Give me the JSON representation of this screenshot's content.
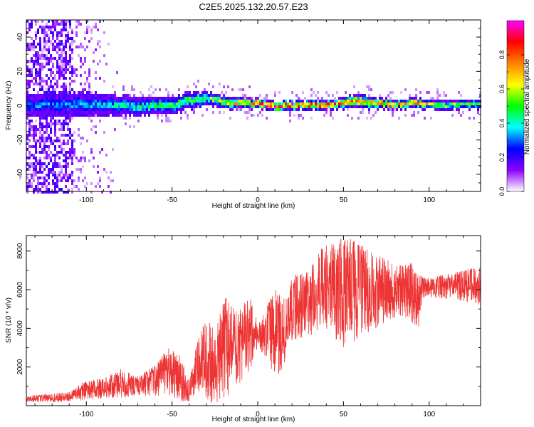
{
  "title": "C2E5.2025.132.20.57.E23",
  "colors": {
    "background": "#ffffff",
    "axis": "#000000",
    "snr_line": "#ee3333",
    "spectrogram_low": "#8b00ff",
    "spectrogram_high": "#ff0000"
  },
  "chart_data": [
    {
      "type": "heatmap",
      "title": "",
      "xlabel": "Height of straight line (km)",
      "ylabel": "Frequency (Hz)",
      "xlim": [
        -135,
        130
      ],
      "ylim": [
        -50,
        50
      ],
      "xticks": [
        -100,
        -50,
        0,
        50,
        100
      ],
      "yticks": [
        -40,
        -20,
        0,
        20,
        40
      ],
      "xtick_labels": [
        "-100",
        "-50",
        "0",
        "50",
        "100"
      ],
      "ytick_labels": [
        "-40",
        "-20",
        "0",
        "20",
        "40"
      ],
      "colorbar": {
        "label": "Normalized spectral amplitude",
        "range": [
          0.0,
          1.0
        ],
        "ticks": [
          0.0,
          0.2,
          0.4,
          0.6,
          0.8
        ],
        "tick_labels": [
          "0.0",
          "0.2",
          "0.4",
          "0.6",
          "0.8"
        ],
        "colormap": [
          "#ffffff",
          "#8b00ff",
          "#0000ff",
          "#00ffff",
          "#00ff00",
          "#ffff00",
          "#ff8000",
          "#ff0000",
          "#ff00ff"
        ]
      },
      "band": {
        "center_frequency": [
          [
            -110,
            0.5
          ],
          [
            -100,
            1.0
          ],
          [
            -90,
            0.8
          ],
          [
            -80,
            0.0
          ],
          [
            -70,
            -0.5
          ],
          [
            -60,
            0.5
          ],
          [
            -50,
            0.0
          ],
          [
            -40,
            3.0
          ],
          [
            -30,
            4.5
          ],
          [
            -20,
            2.0
          ],
          [
            -10,
            1.5
          ],
          [
            0,
            1.0
          ],
          [
            10,
            0.0
          ],
          [
            20,
            0.0
          ],
          [
            30,
            0.5
          ],
          [
            40,
            0.0
          ],
          [
            50,
            1.5
          ],
          [
            60,
            2.5
          ],
          [
            70,
            1.5
          ],
          [
            80,
            0.5
          ],
          [
            90,
            1.5
          ],
          [
            100,
            1.0
          ],
          [
            110,
            0.5
          ],
          [
            120,
            0.8
          ],
          [
            130,
            0.5
          ]
        ],
        "half_width": [
          [
            -110,
            7
          ],
          [
            -100,
            7
          ],
          [
            -80,
            6
          ],
          [
            -60,
            5
          ],
          [
            -40,
            5
          ],
          [
            -30,
            4
          ],
          [
            0,
            3
          ],
          [
            40,
            3
          ],
          [
            60,
            4
          ],
          [
            80,
            3
          ],
          [
            100,
            3
          ],
          [
            130,
            3
          ]
        ],
        "peak_amplitude": [
          [
            -110,
            0.3
          ],
          [
            -90,
            0.35
          ],
          [
            -60,
            0.45
          ],
          [
            -40,
            0.5
          ],
          [
            -20,
            0.55
          ],
          [
            0,
            0.85
          ],
          [
            20,
            0.88
          ],
          [
            40,
            0.8
          ],
          [
            60,
            0.75
          ],
          [
            80,
            0.7
          ],
          [
            95,
            0.75
          ],
          [
            100,
            0.55
          ],
          [
            130,
            0.5
          ]
        ],
        "noise_region": [
          -135,
          -108
        ]
      }
    },
    {
      "type": "line",
      "title": "",
      "xlabel": "Height of straight line (km)",
      "ylabel": "SNR (10 * v/v)",
      "xlim": [
        -135,
        130
      ],
      "ylim": [
        0,
        8800
      ],
      "xticks": [
        -100,
        -50,
        0,
        50,
        100
      ],
      "yticks": [
        2000,
        4000,
        6000,
        8000
      ],
      "xtick_labels": [
        "-100",
        "-50",
        "0",
        "50",
        "100"
      ],
      "ytick_labels": [
        "2000",
        "4000",
        "6000",
        "8000"
      ],
      "series": [
        {
          "color": "#ee3333",
          "envelope": [
            [
              -135,
              150,
              500
            ],
            [
              -110,
              200,
              700
            ],
            [
              -100,
              300,
              1300
            ],
            [
              -90,
              400,
              1400
            ],
            [
              -80,
              400,
              1900
            ],
            [
              -70,
              500,
              1500
            ],
            [
              -60,
              500,
              2100
            ],
            [
              -52,
              500,
              3000
            ],
            [
              -45,
              200,
              2600
            ],
            [
              -40,
              200,
              1200
            ],
            [
              -35,
              500,
              3500
            ],
            [
              -30,
              200,
              4600
            ],
            [
              -25,
              100,
              3800
            ],
            [
              -18,
              100,
              6000
            ],
            [
              -12,
              1000,
              5000
            ],
            [
              -5,
              1500,
              5800
            ],
            [
              0,
              3000,
              4300
            ],
            [
              5,
              2500,
              5000
            ],
            [
              10,
              1400,
              6200
            ],
            [
              15,
              2000,
              5500
            ],
            [
              20,
              3000,
              6700
            ],
            [
              25,
              3500,
              6800
            ],
            [
              30,
              3500,
              7000
            ],
            [
              35,
              3800,
              8000
            ],
            [
              40,
              4000,
              8300
            ],
            [
              45,
              3500,
              8500
            ],
            [
              50,
              3000,
              8700
            ],
            [
              55,
              3200,
              8600
            ],
            [
              60,
              3600,
              8400
            ],
            [
              65,
              3400,
              8100
            ],
            [
              70,
              4000,
              7800
            ],
            [
              75,
              4400,
              7600
            ],
            [
              80,
              4500,
              7200
            ],
            [
              85,
              4600,
              7300
            ],
            [
              90,
              4200,
              7400
            ],
            [
              94,
              4000,
              6800
            ],
            [
              96,
              5600,
              6700
            ],
            [
              100,
              5600,
              6600
            ],
            [
              110,
              5500,
              6800
            ],
            [
              120,
              5400,
              7000
            ],
            [
              130,
              5200,
              7200
            ]
          ]
        }
      ]
    }
  ]
}
